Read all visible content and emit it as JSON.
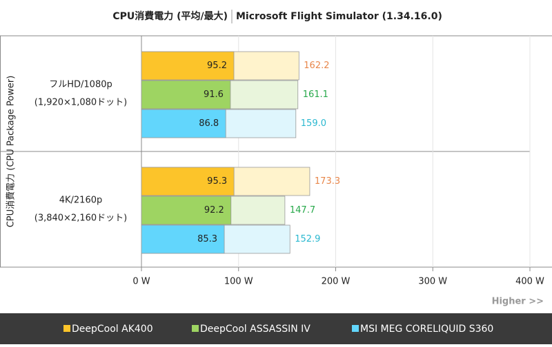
{
  "chart_data": {
    "type": "bar",
    "orientation": "horizontal",
    "title": "CPU消費電力 (平均/最大)",
    "subtitle": "Microsoft Flight Simulator (1.34.16.0)",
    "y_label": "CPU消費電力 (CPU Package Power)",
    "annotation": "Higher >>",
    "categories": [
      "フルHD/1080p",
      "4K/2160p"
    ],
    "category_sublabels": [
      "(1,920×1,080ドット)",
      "(3,840×2,160ドット)"
    ],
    "series": [
      {
        "name": "DeepCool AK400",
        "color": "#fcc42a",
        "max_color": "#fff3cc",
        "label_color": "#e8864a",
        "values": [
          95.2,
          95.3
        ],
        "max": [
          162.2,
          173.3
        ],
        "max_value_labels": [
          "162.2",
          "173.3"
        ]
      },
      {
        "name": "DeepCool ASSASSIN IV",
        "color": "#9ed462",
        "max_color": "#e9f5dc",
        "label_color": "#27a84a",
        "values": [
          91.6,
          92.2
        ],
        "max": [
          161.1,
          147.7
        ],
        "max_value_labels": [
          "161.1",
          "147.7"
        ]
      },
      {
        "name": "MSI MEG CORELIQUID S360",
        "color": "#62d6fc",
        "max_color": "#dff6fd",
        "label_color": "#2ab8d0",
        "values": [
          86.8,
          85.3
        ],
        "max": [
          159.0,
          152.9
        ],
        "max_value_labels": [
          "159.0",
          "152.9"
        ]
      }
    ],
    "xlim": [
      0,
      400
    ],
    "xticks": [
      {
        "value": 0,
        "label": "0 W"
      },
      {
        "value": 100,
        "label": "100 W"
      },
      {
        "value": 200,
        "label": "200 W"
      },
      {
        "value": 300,
        "label": "300 W"
      },
      {
        "value": 400,
        "label": "400 W"
      }
    ],
    "grid": true
  }
}
